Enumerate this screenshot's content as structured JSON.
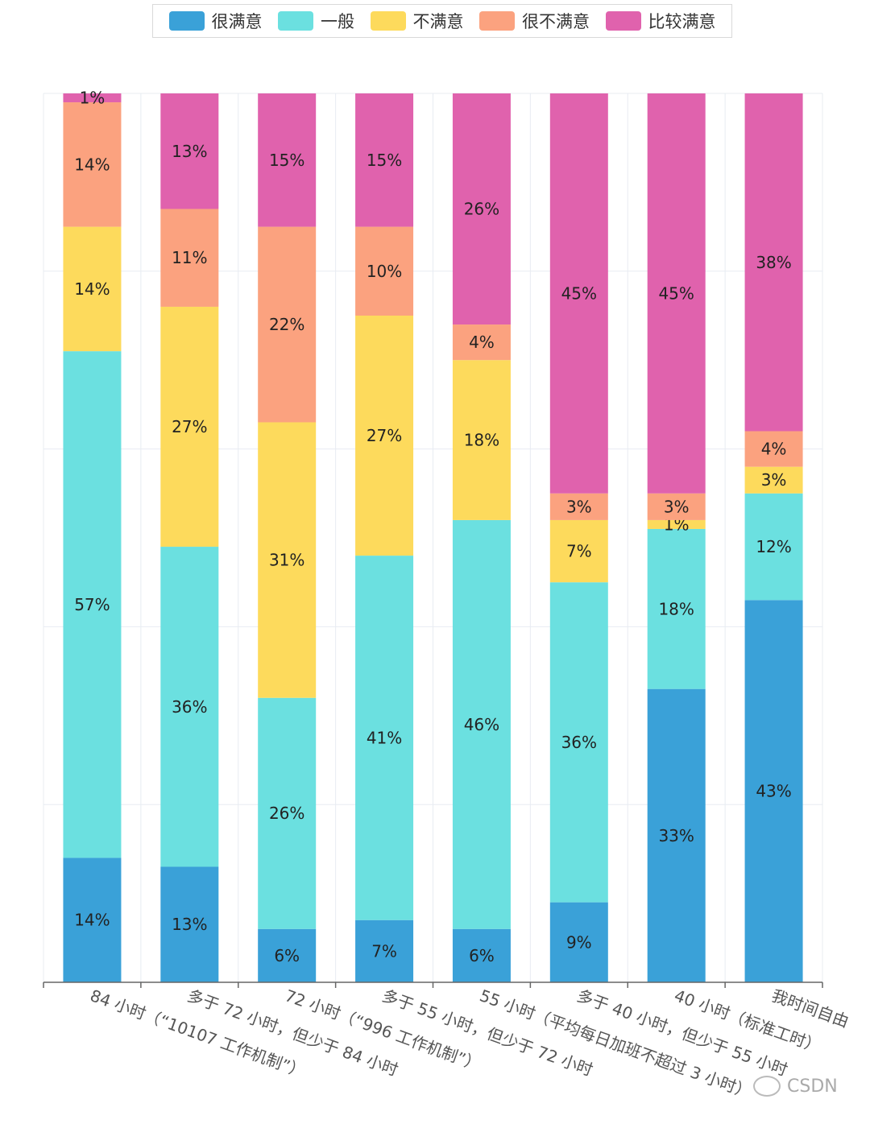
{
  "chart_data": {
    "type": "bar",
    "stacked": true,
    "percent": true,
    "title": "",
    "xlabel": "",
    "ylabel": "",
    "ylim": [
      0,
      100
    ],
    "grid": true,
    "legend_position": "top-center",
    "categories": [
      "84 小时（“10107 工作机制”）",
      "多于 72 小时，但少于 84 小时",
      "72 小时（“996 工作机制”）",
      "多于 55 小时，但少于 72 小时",
      "55 小时（平均每日加班不超过 3 小时）",
      "多于 40 小时，但少于 55 小时",
      "40 小时（标准工时）",
      "我时间自由"
    ],
    "series": [
      {
        "name": "很满意",
        "color": "#3aa1d8",
        "values": [
          14,
          13,
          6,
          7,
          6,
          9,
          33,
          43
        ]
      },
      {
        "name": "一般",
        "color": "#6be0e0",
        "values": [
          57,
          36,
          26,
          41,
          46,
          36,
          18,
          12
        ]
      },
      {
        "name": "不满意",
        "color": "#fdda5c",
        "values": [
          14,
          27,
          31,
          27,
          18,
          7,
          1,
          3
        ]
      },
      {
        "name": "很不满意",
        "color": "#fba27f",
        "values": [
          14,
          11,
          22,
          10,
          4,
          3,
          3,
          4
        ]
      },
      {
        "name": "比较满意",
        "color": "#e062ad",
        "values": [
          1,
          13,
          15,
          15,
          26,
          45,
          45,
          38
        ]
      }
    ],
    "label_suffix": "%"
  },
  "watermark": {
    "text": "CSDN"
  }
}
